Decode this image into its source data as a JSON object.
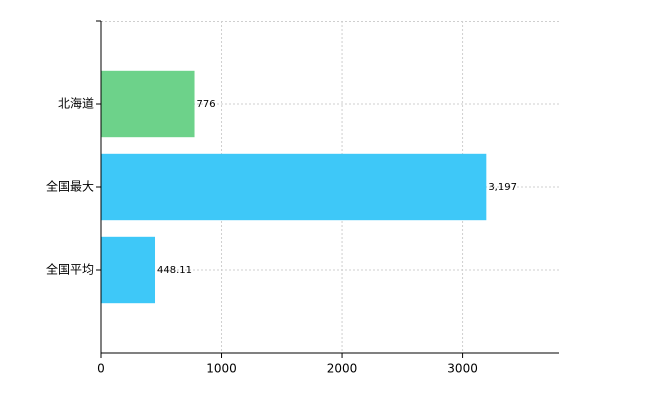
{
  "chart_data": {
    "type": "barh",
    "categories": [
      "北海道",
      "全国最大",
      "全国平均"
    ],
    "values": [
      776,
      3197,
      448.11
    ],
    "value_labels": [
      "776",
      "3,197",
      "448.11"
    ],
    "colors": [
      "#6dd28a",
      "#3ec8f8",
      "#3ec8f8"
    ],
    "xlim": [
      0,
      3800
    ],
    "xticks": [
      0,
      1000,
      2000,
      3000
    ],
    "grid": true
  }
}
